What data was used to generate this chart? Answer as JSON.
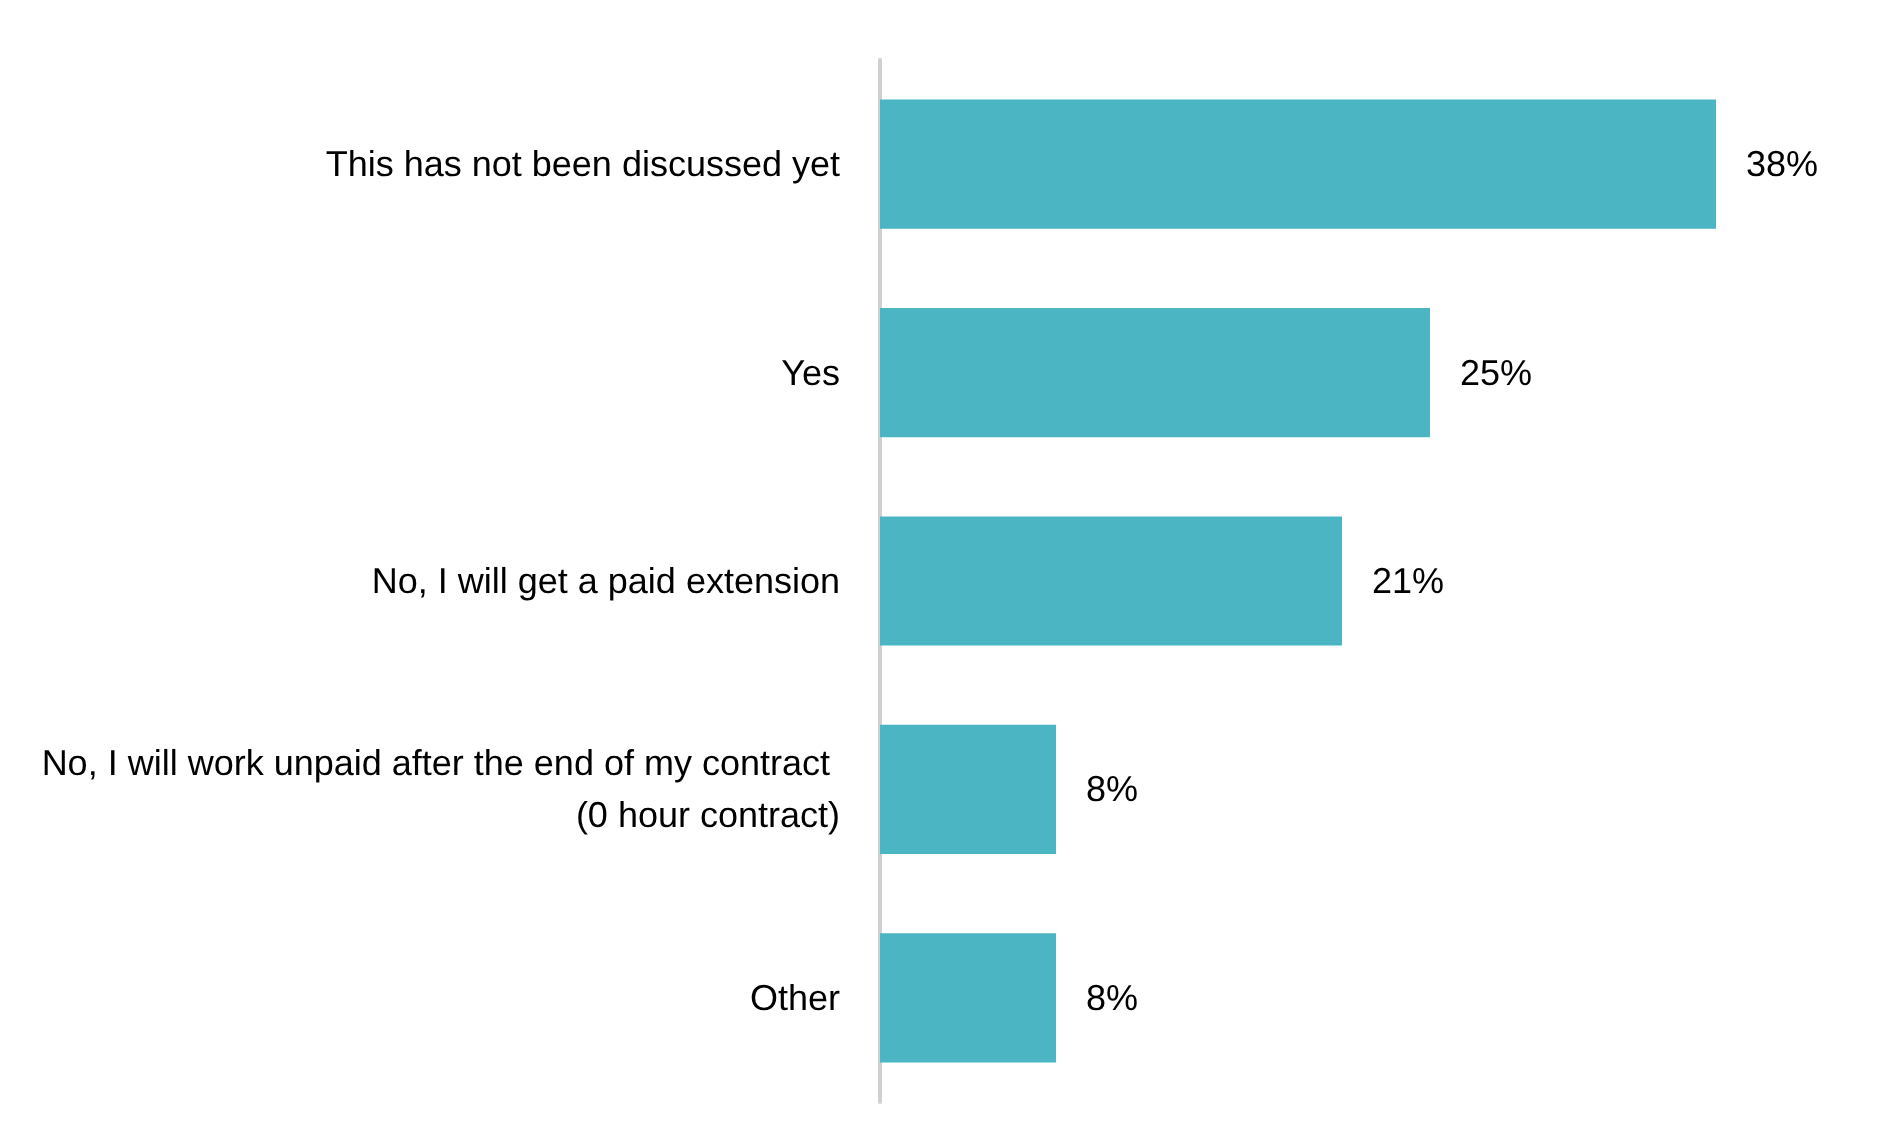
{
  "chart_data": {
    "type": "bar",
    "orientation": "horizontal",
    "categories": [
      "This has not been discussed yet",
      "Yes",
      "No, I will get a paid extension",
      "No, I will work unpaid after the end of my contract (0 hour contract)",
      "Other"
    ],
    "series": [
      {
        "color": "#4bb5c4",
        "values": [
          38,
          25,
          21,
          8,
          8
        ],
        "value_labels": [
          "38%",
          "25%",
          "21%",
          "8%",
          "8%"
        ]
      }
    ],
    "grid": false
  }
}
